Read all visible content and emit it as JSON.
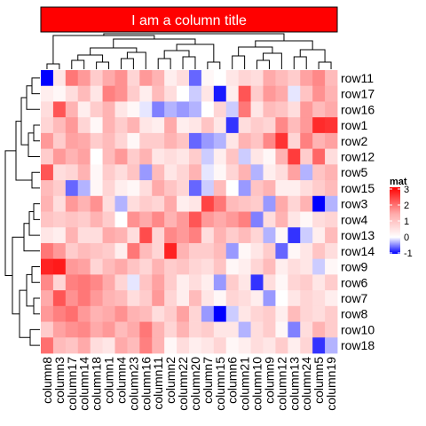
{
  "chart_data": {
    "type": "heatmap",
    "title": "I am a column title",
    "title_fill": "#FF0000",
    "legend": {
      "title": "mat",
      "ticks": [
        3,
        2,
        1,
        0,
        -1
      ],
      "colors": {
        "low": "#0000FF",
        "mid": "#FFFFFF",
        "high": "#FF0000"
      },
      "range": [
        -1,
        3
      ],
      "position": "right"
    },
    "columns": [
      "column8",
      "column3",
      "column17",
      "column14",
      "column18",
      "column1",
      "column4",
      "column23",
      "column16",
      "column11",
      "column2",
      "column22",
      "column20",
      "column7",
      "column15",
      "column6",
      "column21",
      "column10",
      "column9",
      "column12",
      "column13",
      "column24",
      "column5",
      "column19"
    ],
    "rows": [
      "row11",
      "row17",
      "row16",
      "row1",
      "row2",
      "row12",
      "row5",
      "row15",
      "row3",
      "row4",
      "row13",
      "row14",
      "row9",
      "row6",
      "row7",
      "row8",
      "row10",
      "row18"
    ],
    "values": [
      [
        -1.0,
        0.3,
        1.6,
        1.2,
        0.6,
        1.0,
        1.3,
        0.5,
        1.2,
        0.9,
        0.2,
        0.4,
        -0.6,
        0.1,
        0.0,
        0.3,
        0.5,
        0.4,
        1.0,
        0.8,
        0.6,
        1.1,
        1.4,
        0.8
      ],
      [
        0.2,
        0.1,
        0.4,
        0.8,
        0.3,
        1.5,
        1.3,
        0.6,
        0.2,
        0.8,
        0.4,
        0.0,
        -0.2,
        0.3,
        -0.9,
        0.2,
        2.0,
        0.6,
        1.2,
        1.0,
        -0.1,
        0.7,
        1.3,
        0.9
      ],
      [
        0.4,
        2.0,
        0.9,
        0.2,
        0.6,
        0.9,
        0.3,
        0.1,
        -0.1,
        -0.5,
        -0.3,
        -0.4,
        -0.3,
        0.0,
        0.5,
        -0.2,
        1.6,
        0.3,
        0.8,
        0.7,
        0.4,
        1.2,
        0.8,
        1.0
      ],
      [
        0.5,
        0.8,
        1.2,
        0.5,
        0.1,
        0.9,
        0.6,
        0.9,
        0.3,
        0.2,
        1.0,
        0.2,
        0.3,
        0.7,
        0.3,
        -0.8,
        0.4,
        0.6,
        0.5,
        1.4,
        0.8,
        1.2,
        2.5,
        2.4
      ],
      [
        1.2,
        0.6,
        1.1,
        1.0,
        0.6,
        0.8,
        0.5,
        0.1,
        0.6,
        0.6,
        0.9,
        0.7,
        -0.6,
        -0.4,
        -0.3,
        0.3,
        0.9,
        0.7,
        1.4,
        2.4,
        0.5,
        1.5,
        0.9,
        1.1
      ],
      [
        0.6,
        1.2,
        0.9,
        1.1,
        0.0,
        0.8,
        1.2,
        0.6,
        0.9,
        0.3,
        0.4,
        0.3,
        0.6,
        -0.2,
        0.2,
        0.7,
        -0.2,
        0.3,
        0.1,
        0.9,
        2.3,
        0.6,
        1.8,
        0.4
      ],
      [
        2.0,
        0.4,
        0.5,
        0.9,
        0.1,
        0.6,
        0.4,
        0.7,
        -0.4,
        0.8,
        0.3,
        0.5,
        0.9,
        -0.1,
        0.1,
        0.5,
        0.9,
        -0.3,
        0.2,
        0.4,
        1.1,
        -0.3,
        0.7,
        0.9
      ],
      [
        0.8,
        0.6,
        -0.6,
        -0.3,
        0.1,
        0.5,
        0.2,
        0.1,
        0.4,
        1.0,
        0.7,
        0.5,
        -0.6,
        -0.2,
        0.8,
        0.0,
        -0.4,
        0.7,
        0.9,
        0.2,
        0.2,
        0.4,
        0.6,
        0.8
      ],
      [
        0.9,
        0.4,
        1.2,
        0.9,
        1.3,
        0.4,
        -0.3,
        0.4,
        0.6,
        0.5,
        1.0,
        0.2,
        0.3,
        2.2,
        1.6,
        0.8,
        0.7,
        0.6,
        -0.4,
        1.0,
        0.5,
        0.9,
        -1.0,
        -0.3
      ],
      [
        0.7,
        0.6,
        0.7,
        0.6,
        0.9,
        0.6,
        0.0,
        1.3,
        1.0,
        1.4,
        0.9,
        1.2,
        2.0,
        1.2,
        1.0,
        1.2,
        1.5,
        -0.5,
        0.4,
        0.9,
        0.3,
        0.1,
        0.4,
        0.5
      ],
      [
        0.3,
        0.2,
        0.9,
        0.4,
        0.4,
        1.0,
        0.9,
        0.4,
        2.1,
        0.5,
        1.4,
        1.2,
        1.5,
        0.4,
        0.9,
        0.6,
        0.8,
        0.5,
        -0.3,
        0.1,
        -0.8,
        -0.2,
        0.2,
        0.8
      ],
      [
        1.6,
        1.2,
        0.6,
        0.8,
        0.7,
        0.6,
        0.2,
        1.6,
        0.8,
        0.5,
        2.6,
        0.9,
        0.6,
        0.6,
        0.8,
        -0.4,
        0.1,
        0.3,
        0.6,
        -0.6,
        0.1,
        0.3,
        0.7,
        0.4
      ],
      [
        2.6,
        2.7,
        1.2,
        1.1,
        0.5,
        0.8,
        1.0,
        0.7,
        0.5,
        0.9,
        0.6,
        0.7,
        0.5,
        0.4,
        0.7,
        0.1,
        0.2,
        0.5,
        0.8,
        0.2,
        0.4,
        0.3,
        -0.2,
        0.1
      ],
      [
        1.4,
        0.5,
        1.5,
        1.6,
        1.4,
        1.0,
        0.5,
        -0.1,
        0.7,
        1.1,
        0.6,
        0.2,
        0.4,
        0.2,
        -0.4,
        0.6,
        0.3,
        -0.8,
        0.4,
        0.1,
        0.5,
        0.6,
        0.3,
        0.6
      ],
      [
        1.0,
        2.0,
        1.3,
        1.6,
        1.2,
        0.9,
        0.8,
        0.4,
        0.6,
        1.2,
        0.5,
        0.2,
        0.8,
        0.3,
        0.1,
        0.5,
        0.4,
        0.2,
        -0.4,
        0.0,
        0.3,
        0.5,
        0.4,
        0.2
      ],
      [
        1.2,
        1.5,
        1.7,
        1.2,
        0.9,
        1.0,
        1.3,
        0.9,
        0.8,
        0.4,
        0.6,
        1.1,
        0.5,
        -0.4,
        -1.0,
        -0.2,
        0.3,
        0.5,
        0.6,
        0.2,
        0.8,
        0.5,
        0.4,
        0.6
      ],
      [
        0.6,
        1.1,
        1.3,
        1.4,
        1.0,
        1.2,
        0.8,
        1.0,
        1.6,
        0.9,
        0.5,
        0.9,
        0.5,
        0.6,
        0.3,
        0.3,
        -0.3,
        0.4,
        0.6,
        0.1,
        -0.5,
        0.4,
        0.9,
        0.6
      ],
      [
        1.7,
        0.8,
        0.7,
        1.0,
        0.4,
        0.3,
        1.0,
        0.8,
        1.5,
        0.9,
        0.1,
        0.4,
        0.2,
        0.3,
        0.5,
        0.1,
        0.2,
        0.4,
        0.3,
        0.6,
        0.2,
        0.5,
        -0.8,
        -0.3
      ]
    ]
  }
}
